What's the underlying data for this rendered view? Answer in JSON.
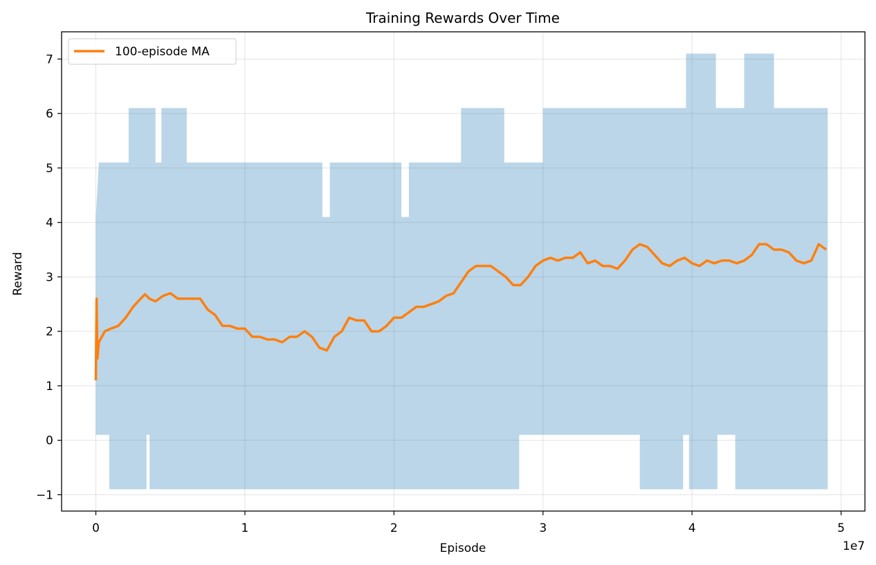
{
  "chart_data": {
    "type": "line",
    "title": "Training Rewards Over Time",
    "xlabel": "Episode",
    "ylabel": "Reward",
    "x_offset_label": "1e7",
    "xlim": [
      -0.23,
      5.16
    ],
    "ylim": [
      -1.3,
      7.5
    ],
    "x_ticks": [
      0,
      1,
      2,
      3,
      4,
      5
    ],
    "y_ticks": [
      -1,
      0,
      1,
      2,
      3,
      4,
      5,
      6,
      7
    ],
    "y_tick_labels": [
      "−1",
      "0",
      "1",
      "2",
      "3",
      "4",
      "5",
      "6",
      "7"
    ],
    "grid": true,
    "legend": {
      "position": "top-left",
      "entries": [
        {
          "label": "100-episode MA",
          "color": "#ff7f0e"
        }
      ]
    },
    "colors": {
      "raw": "#1f77b4",
      "raw_alpha": 0.3,
      "ma": "#ff7f0e"
    },
    "raw_band": {
      "top": [
        [
          0.0,
          4.1
        ],
        [
          0.02,
          5.1
        ],
        [
          0.22,
          5.1
        ],
        [
          0.22,
          6.1
        ],
        [
          0.4,
          6.1
        ],
        [
          0.4,
          5.1
        ],
        [
          0.44,
          5.1
        ],
        [
          0.44,
          6.1
        ],
        [
          0.61,
          6.1
        ],
        [
          0.61,
          5.1
        ],
        [
          1.52,
          5.1
        ],
        [
          1.52,
          4.1
        ],
        [
          1.57,
          4.1
        ],
        [
          1.57,
          5.1
        ],
        [
          2.05,
          5.1
        ],
        [
          2.05,
          4.1
        ],
        [
          2.1,
          4.1
        ],
        [
          2.1,
          5.1
        ],
        [
          2.45,
          5.1
        ],
        [
          2.45,
          6.1
        ],
        [
          2.74,
          6.1
        ],
        [
          2.74,
          5.1
        ],
        [
          3.0,
          5.1
        ],
        [
          3.0,
          6.1
        ],
        [
          3.96,
          6.1
        ],
        [
          3.96,
          7.1
        ],
        [
          4.16,
          7.1
        ],
        [
          4.16,
          6.1
        ],
        [
          4.35,
          6.1
        ],
        [
          4.35,
          7.1
        ],
        [
          4.55,
          7.1
        ],
        [
          4.55,
          6.1
        ],
        [
          4.91,
          6.1
        ]
      ],
      "bottom": [
        [
          0.0,
          0.1
        ],
        [
          0.09,
          0.1
        ],
        [
          0.09,
          -0.9
        ],
        [
          0.34,
          -0.9
        ],
        [
          0.34,
          0.1
        ],
        [
          0.36,
          0.1
        ],
        [
          0.36,
          -0.9
        ],
        [
          2.84,
          -0.9
        ],
        [
          2.84,
          0.1
        ],
        [
          3.65,
          0.1
        ],
        [
          3.65,
          -0.9
        ],
        [
          3.94,
          -0.9
        ],
        [
          3.94,
          0.1
        ],
        [
          3.98,
          0.1
        ],
        [
          3.98,
          -0.9
        ],
        [
          4.17,
          -0.9
        ],
        [
          4.17,
          0.1
        ],
        [
          4.29,
          0.1
        ],
        [
          4.29,
          -0.9
        ],
        [
          4.91,
          -0.9
        ]
      ]
    },
    "series": [
      {
        "name": "100-episode MA",
        "x": [
          0.0,
          0.005,
          0.01,
          0.02,
          0.04,
          0.06,
          0.1,
          0.15,
          0.2,
          0.25,
          0.3,
          0.33,
          0.36,
          0.4,
          0.45,
          0.5,
          0.55,
          0.6,
          0.65,
          0.7,
          0.75,
          0.8,
          0.85,
          0.9,
          0.95,
          1.0,
          1.05,
          1.1,
          1.15,
          1.2,
          1.25,
          1.3,
          1.35,
          1.4,
          1.45,
          1.5,
          1.55,
          1.6,
          1.65,
          1.7,
          1.75,
          1.8,
          1.85,
          1.9,
          1.95,
          2.0,
          2.05,
          2.1,
          2.15,
          2.2,
          2.25,
          2.3,
          2.35,
          2.4,
          2.45,
          2.5,
          2.55,
          2.6,
          2.65,
          2.7,
          2.75,
          2.8,
          2.85,
          2.9,
          2.95,
          3.0,
          3.05,
          3.1,
          3.15,
          3.2,
          3.25,
          3.3,
          3.35,
          3.4,
          3.45,
          3.5,
          3.55,
          3.6,
          3.65,
          3.7,
          3.75,
          3.8,
          3.85,
          3.9,
          3.95,
          4.0,
          4.05,
          4.1,
          4.15,
          4.2,
          4.25,
          4.3,
          4.35,
          4.4,
          4.45,
          4.5,
          4.55,
          4.6,
          4.65,
          4.7,
          4.75,
          4.8,
          4.85,
          4.9
        ],
        "y": [
          1.1,
          2.6,
          1.5,
          1.8,
          1.9,
          2.0,
          2.05,
          2.1,
          2.25,
          2.45,
          2.6,
          2.68,
          2.6,
          2.55,
          2.65,
          2.7,
          2.6,
          2.6,
          2.6,
          2.6,
          2.4,
          2.3,
          2.1,
          2.1,
          2.05,
          2.05,
          1.9,
          1.9,
          1.85,
          1.85,
          1.8,
          1.9,
          1.9,
          2.0,
          1.9,
          1.7,
          1.65,
          1.9,
          2.0,
          2.25,
          2.2,
          2.2,
          2.0,
          2.0,
          2.1,
          2.25,
          2.25,
          2.35,
          2.45,
          2.45,
          2.5,
          2.55,
          2.65,
          2.7,
          2.9,
          3.1,
          3.2,
          3.2,
          3.2,
          3.1,
          3.0,
          2.85,
          2.85,
          3.0,
          3.2,
          3.3,
          3.35,
          3.3,
          3.35,
          3.35,
          3.45,
          3.25,
          3.3,
          3.2,
          3.2,
          3.15,
          3.3,
          3.5,
          3.6,
          3.55,
          3.4,
          3.25,
          3.2,
          3.3,
          3.35,
          3.25,
          3.2,
          3.3,
          3.25,
          3.3,
          3.3,
          3.25,
          3.3,
          3.4,
          3.6,
          3.6,
          3.5,
          3.5,
          3.45,
          3.3,
          3.25,
          3.3,
          3.6,
          3.5
        ]
      }
    ]
  }
}
